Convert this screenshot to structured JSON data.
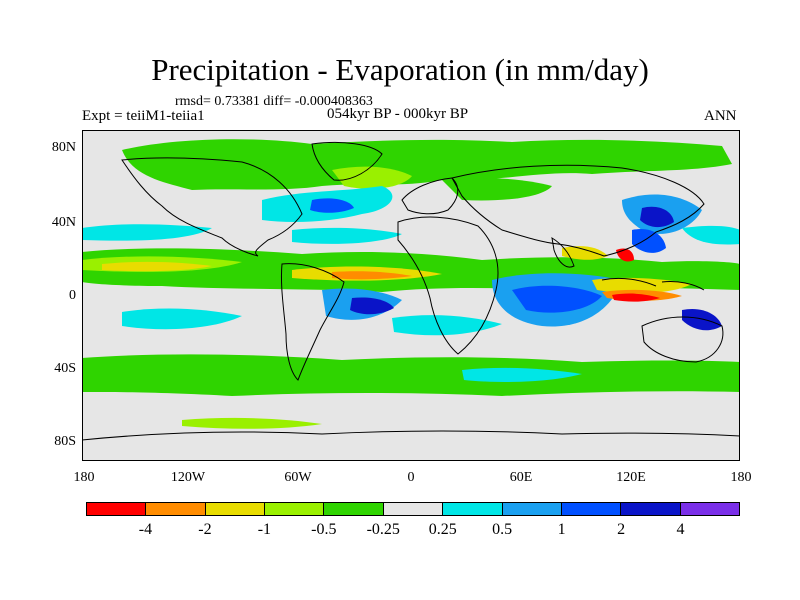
{
  "title": "Precipitation - Evaporation (in mm/day)",
  "stats": "rmsd= 0.73381 diff= -0.000408363",
  "experiment": "Expt = teiiM1-teiia1",
  "period": "054kyr BP - 000kyr BP",
  "season": "ANN",
  "y_ticks": [
    "80N",
    "40N",
    "0",
    "40S",
    "80S"
  ],
  "x_ticks": [
    "180",
    "120W",
    "60W",
    "0",
    "60E",
    "120E",
    "180"
  ],
  "colorbar": {
    "colors": [
      "#ff0000",
      "#ff8c00",
      "#e8dc00",
      "#9af000",
      "#2fd400",
      "#e6e6e6",
      "#00e6e6",
      "#1aa0f0",
      "#0050ff",
      "#0a14c8",
      "#7a2fe8"
    ],
    "labels": [
      "-4",
      "-2",
      "-1",
      "-0.5",
      "-0.25",
      "0.25",
      "0.5",
      "1",
      "2",
      "4"
    ]
  }
}
